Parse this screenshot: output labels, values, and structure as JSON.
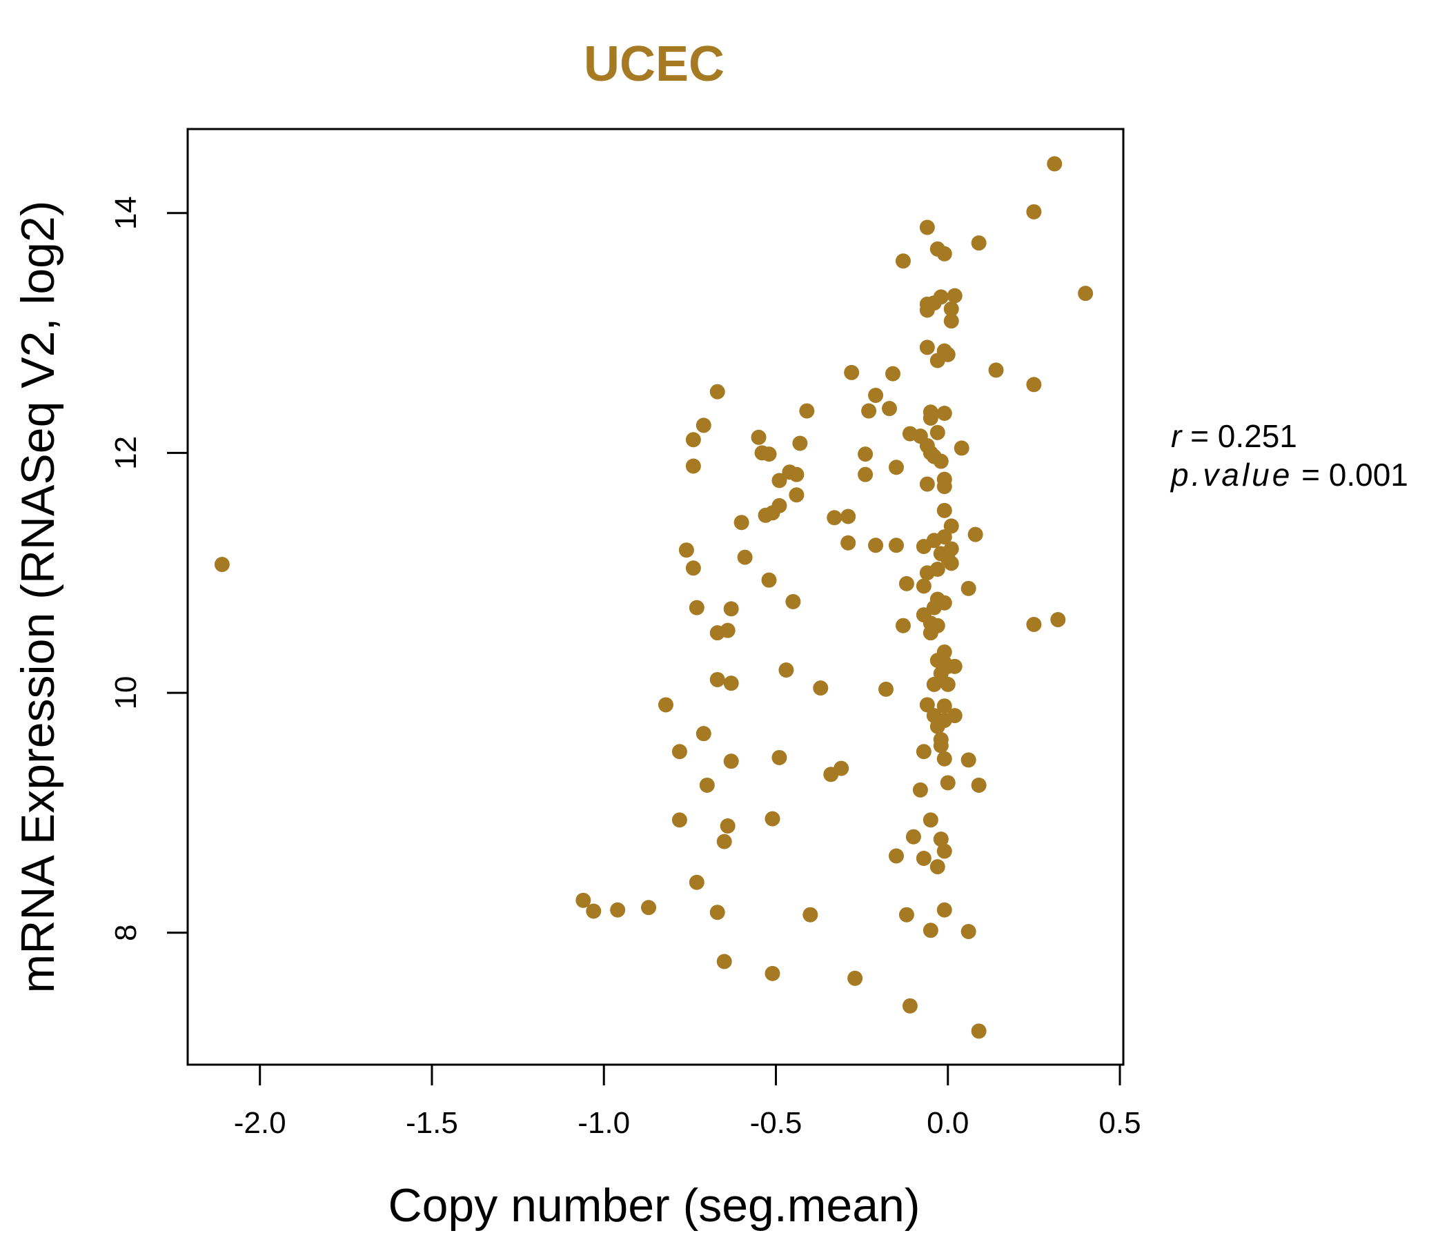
{
  "chart_data": {
    "type": "scatter",
    "title": "UCEC",
    "xlabel": "Copy number (seg.mean)",
    "ylabel": "mRNA Expression (RNASeq V2, log2)",
    "xlim": [
      -2.21,
      0.51
    ],
    "ylim": [
      6.9,
      14.7
    ],
    "x_ticks": [
      -2.0,
      -1.5,
      -1.0,
      -0.5,
      0.0,
      0.5
    ],
    "x_tick_labels": [
      "-2.0",
      "-1.5",
      "-1.0",
      "-0.5",
      "0.0",
      "0.5"
    ],
    "y_ticks": [
      8,
      10,
      12,
      14
    ],
    "y_tick_labels": [
      "8",
      "10",
      "12",
      "14"
    ],
    "grid": false,
    "point_color": "#A67A22",
    "title_color": "#A67A22",
    "stats": {
      "r_label": "r",
      "r_value": "0.251",
      "p_label": "p.value",
      "p_value": "0.001"
    },
    "points": [
      [
        -2.11,
        11.07
      ],
      [
        0.31,
        14.41
      ],
      [
        0.25,
        14.01
      ],
      [
        0.4,
        13.33
      ],
      [
        0.09,
        13.75
      ],
      [
        -0.06,
        13.88
      ],
      [
        -0.13,
        13.6
      ],
      [
        -0.03,
        13.7
      ],
      [
        -0.01,
        13.66
      ],
      [
        0.02,
        13.31
      ],
      [
        -0.02,
        13.3
      ],
      [
        -0.04,
        13.25
      ],
      [
        -0.06,
        13.24
      ],
      [
        -0.06,
        13.19
      ],
      [
        0.01,
        13.2
      ],
      [
        0.01,
        13.1
      ],
      [
        -0.06,
        12.88
      ],
      [
        -0.01,
        12.85
      ],
      [
        0.0,
        12.82
      ],
      [
        -0.03,
        12.77
      ],
      [
        0.14,
        12.69
      ],
      [
        -0.28,
        12.67
      ],
      [
        -0.16,
        12.66
      ],
      [
        0.25,
        12.57
      ],
      [
        -0.67,
        12.51
      ],
      [
        -0.21,
        12.48
      ],
      [
        -0.17,
        12.37
      ],
      [
        -0.23,
        12.35
      ],
      [
        -0.41,
        12.35
      ],
      [
        -0.05,
        12.34
      ],
      [
        -0.01,
        12.33
      ],
      [
        -0.05,
        12.29
      ],
      [
        -0.71,
        12.23
      ],
      [
        -0.11,
        12.16
      ],
      [
        -0.03,
        12.17
      ],
      [
        -0.08,
        12.14
      ],
      [
        -0.55,
        12.13
      ],
      [
        -0.74,
        12.11
      ],
      [
        -0.43,
        12.08
      ],
      [
        -0.06,
        12.06
      ],
      [
        0.04,
        12.04
      ],
      [
        -0.05,
        12.0
      ],
      [
        -0.54,
        12.0
      ],
      [
        -0.52,
        11.99
      ],
      [
        -0.24,
        11.99
      ],
      [
        -0.04,
        11.97
      ],
      [
        -0.02,
        11.93
      ],
      [
        -0.74,
        11.89
      ],
      [
        -0.15,
        11.88
      ],
      [
        -0.46,
        11.84
      ],
      [
        -0.44,
        11.82
      ],
      [
        -0.24,
        11.82
      ],
      [
        -0.01,
        11.78
      ],
      [
        -0.49,
        11.77
      ],
      [
        -0.06,
        11.74
      ],
      [
        -0.01,
        11.72
      ],
      [
        -0.44,
        11.65
      ],
      [
        -0.49,
        11.56
      ],
      [
        -0.01,
        11.52
      ],
      [
        -0.51,
        11.5
      ],
      [
        -0.53,
        11.48
      ],
      [
        -0.29,
        11.47
      ],
      [
        -0.33,
        11.46
      ],
      [
        -0.6,
        11.42
      ],
      [
        0.01,
        11.39
      ],
      [
        0.08,
        11.32
      ],
      [
        -0.01,
        11.3
      ],
      [
        -0.04,
        11.27
      ],
      [
        -0.29,
        11.25
      ],
      [
        -0.21,
        11.23
      ],
      [
        -0.15,
        11.23
      ],
      [
        -0.07,
        11.22
      ],
      [
        0.01,
        11.2
      ],
      [
        -0.76,
        11.19
      ],
      [
        -0.02,
        11.16
      ],
      [
        0.0,
        11.12
      ],
      [
        -0.59,
        11.13
      ],
      [
        0.01,
        11.08
      ],
      [
        -0.74,
        11.04
      ],
      [
        -0.03,
        11.03
      ],
      [
        -0.06,
        11.0
      ],
      [
        -0.52,
        10.94
      ],
      [
        -0.12,
        10.91
      ],
      [
        -0.07,
        10.89
      ],
      [
        0.06,
        10.87
      ],
      [
        -0.03,
        10.78
      ],
      [
        -0.01,
        10.75
      ],
      [
        -0.45,
        10.76
      ],
      [
        -0.73,
        10.71
      ],
      [
        -0.63,
        10.7
      ],
      [
        -0.04,
        10.71
      ],
      [
        -0.07,
        10.65
      ],
      [
        -0.05,
        10.58
      ],
      [
        -0.03,
        10.56
      ],
      [
        -0.13,
        10.56
      ],
      [
        0.25,
        10.57
      ],
      [
        0.32,
        10.61
      ],
      [
        -0.64,
        10.52
      ],
      [
        -0.67,
        10.5
      ],
      [
        -0.05,
        10.5
      ],
      [
        -0.01,
        10.34
      ],
      [
        -0.03,
        10.27
      ],
      [
        -0.01,
        10.25
      ],
      [
        0.0,
        10.22
      ],
      [
        0.02,
        10.22
      ],
      [
        -0.47,
        10.19
      ],
      [
        -0.02,
        10.16
      ],
      [
        -0.67,
        10.11
      ],
      [
        -0.63,
        10.08
      ],
      [
        -0.04,
        10.07
      ],
      [
        0.0,
        10.07
      ],
      [
        -0.37,
        10.04
      ],
      [
        -0.18,
        10.03
      ],
      [
        -0.82,
        9.9
      ],
      [
        -0.06,
        9.9
      ],
      [
        -0.01,
        9.89
      ],
      [
        -0.04,
        9.81
      ],
      [
        0.02,
        9.81
      ],
      [
        -0.01,
        9.77
      ],
      [
        -0.03,
        9.72
      ],
      [
        -0.71,
        9.66
      ],
      [
        -0.02,
        9.61
      ],
      [
        -0.02,
        9.56
      ],
      [
        -0.78,
        9.51
      ],
      [
        -0.07,
        9.51
      ],
      [
        -0.49,
        9.46
      ],
      [
        -0.01,
        9.45
      ],
      [
        0.06,
        9.44
      ],
      [
        -0.63,
        9.43
      ],
      [
        -0.31,
        9.37
      ],
      [
        -0.34,
        9.32
      ],
      [
        0.0,
        9.25
      ],
      [
        0.09,
        9.23
      ],
      [
        -0.7,
        9.23
      ],
      [
        -0.08,
        9.19
      ],
      [
        -0.51,
        8.95
      ],
      [
        -0.78,
        8.94
      ],
      [
        -0.05,
        8.94
      ],
      [
        -0.64,
        8.89
      ],
      [
        -0.1,
        8.8
      ],
      [
        -0.02,
        8.78
      ],
      [
        -0.65,
        8.76
      ],
      [
        -0.01,
        8.68
      ],
      [
        -0.15,
        8.64
      ],
      [
        -0.07,
        8.62
      ],
      [
        -0.03,
        8.55
      ],
      [
        -0.73,
        8.42
      ],
      [
        -1.06,
        8.27
      ],
      [
        -0.87,
        8.21
      ],
      [
        -0.96,
        8.19
      ],
      [
        -1.03,
        8.18
      ],
      [
        -0.01,
        8.19
      ],
      [
        -0.67,
        8.17
      ],
      [
        -0.4,
        8.15
      ],
      [
        -0.12,
        8.15
      ],
      [
        -0.05,
        8.02
      ],
      [
        0.06,
        8.01
      ],
      [
        -0.65,
        7.76
      ],
      [
        -0.51,
        7.66
      ],
      [
        -0.27,
        7.62
      ],
      [
        -0.11,
        7.39
      ],
      [
        0.09,
        7.18
      ]
    ]
  }
}
